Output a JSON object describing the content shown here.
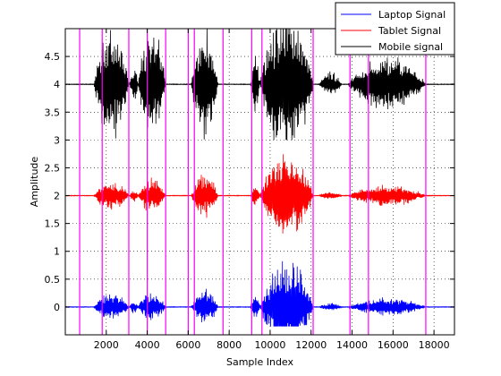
{
  "chart_data": {
    "type": "line",
    "title": "",
    "xlabel": "Sample Index",
    "ylabel": "Amplitude",
    "xlim": [
      0,
      19000
    ],
    "ylim": [
      -0.5,
      5.0
    ],
    "xticks": [
      2000,
      4000,
      6000,
      8000,
      10000,
      12000,
      14000,
      16000,
      18000
    ],
    "xtick_labels": [
      "2000",
      "4000",
      "6000",
      "8000",
      "10000",
      "12000",
      "14000",
      "16000",
      "18000"
    ],
    "yticks": [
      0,
      0.5,
      1,
      1.5,
      2,
      2.5,
      3,
      3.5,
      4,
      4.5
    ],
    "ytick_labels": [
      "0",
      "0.5",
      "1",
      "1.5",
      "2",
      "2.5",
      "3",
      "3.5",
      "4",
      "4.5"
    ],
    "grid": true,
    "legend_position": "top-right",
    "series": [
      {
        "name": "Laptop Signal",
        "color": "#0000ff",
        "offset": 0,
        "clip": [
          -0.35,
          0.95
        ],
        "segments": [
          {
            "start": 1400,
            "end": 3100,
            "amp": 0.28
          },
          {
            "start": 3150,
            "end": 3550,
            "amp": 0.14
          },
          {
            "start": 3550,
            "end": 4900,
            "amp": 0.3
          },
          {
            "start": 6150,
            "end": 7450,
            "amp": 0.35
          },
          {
            "start": 9050,
            "end": 9500,
            "amp": 0.3
          },
          {
            "start": 9500,
            "end": 12100,
            "amp": 0.95
          },
          {
            "start": 12400,
            "end": 13500,
            "amp": 0.08
          },
          {
            "start": 13800,
            "end": 17600,
            "amp": 0.18
          }
        ]
      },
      {
        "name": "Tablet Signal",
        "color": "#ff0000",
        "offset": 2,
        "clip": [
          1.25,
          3.0
        ],
        "segments": [
          {
            "start": 1400,
            "end": 3100,
            "amp": 0.3
          },
          {
            "start": 3150,
            "end": 3550,
            "amp": 0.12
          },
          {
            "start": 3550,
            "end": 4900,
            "amp": 0.35
          },
          {
            "start": 6150,
            "end": 7450,
            "amp": 0.45
          },
          {
            "start": 9050,
            "end": 9500,
            "amp": 0.2
          },
          {
            "start": 9500,
            "end": 12100,
            "amp": 0.85
          },
          {
            "start": 12400,
            "end": 13500,
            "amp": 0.08
          },
          {
            "start": 13800,
            "end": 17600,
            "amp": 0.22
          }
        ]
      },
      {
        "name": "Mobile signal",
        "color": "#000000",
        "offset": 4,
        "clip": [
          3.0,
          5.0
        ],
        "segments": [
          {
            "start": 1400,
            "end": 3100,
            "amp": 1.1
          },
          {
            "start": 3150,
            "end": 3550,
            "amp": 0.35
          },
          {
            "start": 3550,
            "end": 4900,
            "amp": 1.1
          },
          {
            "start": 6150,
            "end": 7450,
            "amp": 1.1
          },
          {
            "start": 9050,
            "end": 9500,
            "amp": 0.6
          },
          {
            "start": 9500,
            "end": 12100,
            "amp": 1.5
          },
          {
            "start": 12400,
            "end": 13500,
            "amp": 0.25
          },
          {
            "start": 13800,
            "end": 17600,
            "amp": 0.55
          }
        ]
      }
    ],
    "vertical_markers": {
      "color": "#ff00ff",
      "x": [
        700,
        1800,
        3100,
        4000,
        4900,
        6000,
        6300,
        7700,
        9100,
        9600,
        12100,
        13900,
        14800,
        17600
      ]
    }
  }
}
